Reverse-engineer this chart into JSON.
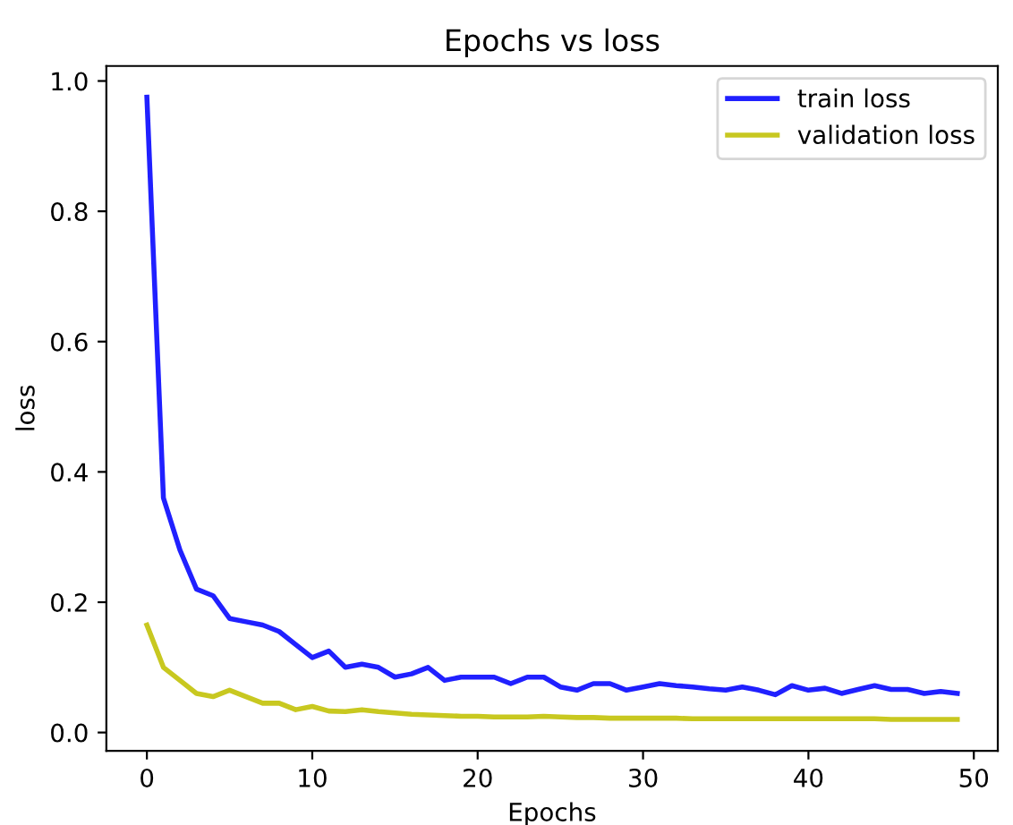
{
  "chart_data": {
    "type": "line",
    "title": "Epochs vs loss",
    "xlabel": "Epochs",
    "ylabel": "loss",
    "x": [
      0,
      1,
      2,
      3,
      4,
      5,
      6,
      7,
      8,
      9,
      10,
      11,
      12,
      13,
      14,
      15,
      16,
      17,
      18,
      19,
      20,
      21,
      22,
      23,
      24,
      25,
      26,
      27,
      28,
      29,
      30,
      31,
      32,
      33,
      34,
      35,
      36,
      37,
      38,
      39,
      40,
      41,
      42,
      43,
      44,
      45,
      46,
      47,
      48,
      49
    ],
    "series": [
      {
        "name": "train loss",
        "color": "#2020ff",
        "values": [
          0.975,
          0.36,
          0.28,
          0.22,
          0.21,
          0.175,
          0.17,
          0.165,
          0.155,
          0.135,
          0.115,
          0.125,
          0.1,
          0.105,
          0.1,
          0.085,
          0.09,
          0.1,
          0.08,
          0.085,
          0.085,
          0.085,
          0.075,
          0.085,
          0.085,
          0.07,
          0.065,
          0.075,
          0.075,
          0.065,
          0.07,
          0.075,
          0.072,
          0.07,
          0.067,
          0.065,
          0.07,
          0.065,
          0.058,
          0.072,
          0.065,
          0.068,
          0.06,
          0.066,
          0.072,
          0.066,
          0.066,
          0.06,
          0.063,
          0.06
        ]
      },
      {
        "name": "validation loss",
        "color": "#c8c820",
        "values": [
          0.165,
          0.1,
          0.08,
          0.06,
          0.055,
          0.065,
          0.055,
          0.045,
          0.045,
          0.035,
          0.04,
          0.033,
          0.032,
          0.035,
          0.032,
          0.03,
          0.028,
          0.027,
          0.026,
          0.025,
          0.025,
          0.024,
          0.024,
          0.024,
          0.025,
          0.024,
          0.023,
          0.023,
          0.022,
          0.022,
          0.022,
          0.022,
          0.022,
          0.021,
          0.021,
          0.021,
          0.021,
          0.021,
          0.021,
          0.021,
          0.021,
          0.021,
          0.021,
          0.021,
          0.021,
          0.02,
          0.02,
          0.02,
          0.02,
          0.02
        ]
      }
    ],
    "xlim": [
      -2.45,
      51.45
    ],
    "ylim": [
      -0.028,
      1.023
    ],
    "xticks": [
      0,
      10,
      20,
      30,
      40,
      50
    ],
    "yticks": [
      {
        "value": 0,
        "label": "0.0"
      },
      {
        "value": 0.2,
        "label": "0.2"
      },
      {
        "value": 0.4,
        "label": "0.4"
      },
      {
        "value": 0.6,
        "label": "0.6"
      },
      {
        "value": 0.8,
        "label": "0.8"
      },
      {
        "value": 1,
        "label": "1.0"
      }
    ],
    "legend": "top right",
    "grid": false,
    "marker": "none",
    "line_style": "solid"
  }
}
